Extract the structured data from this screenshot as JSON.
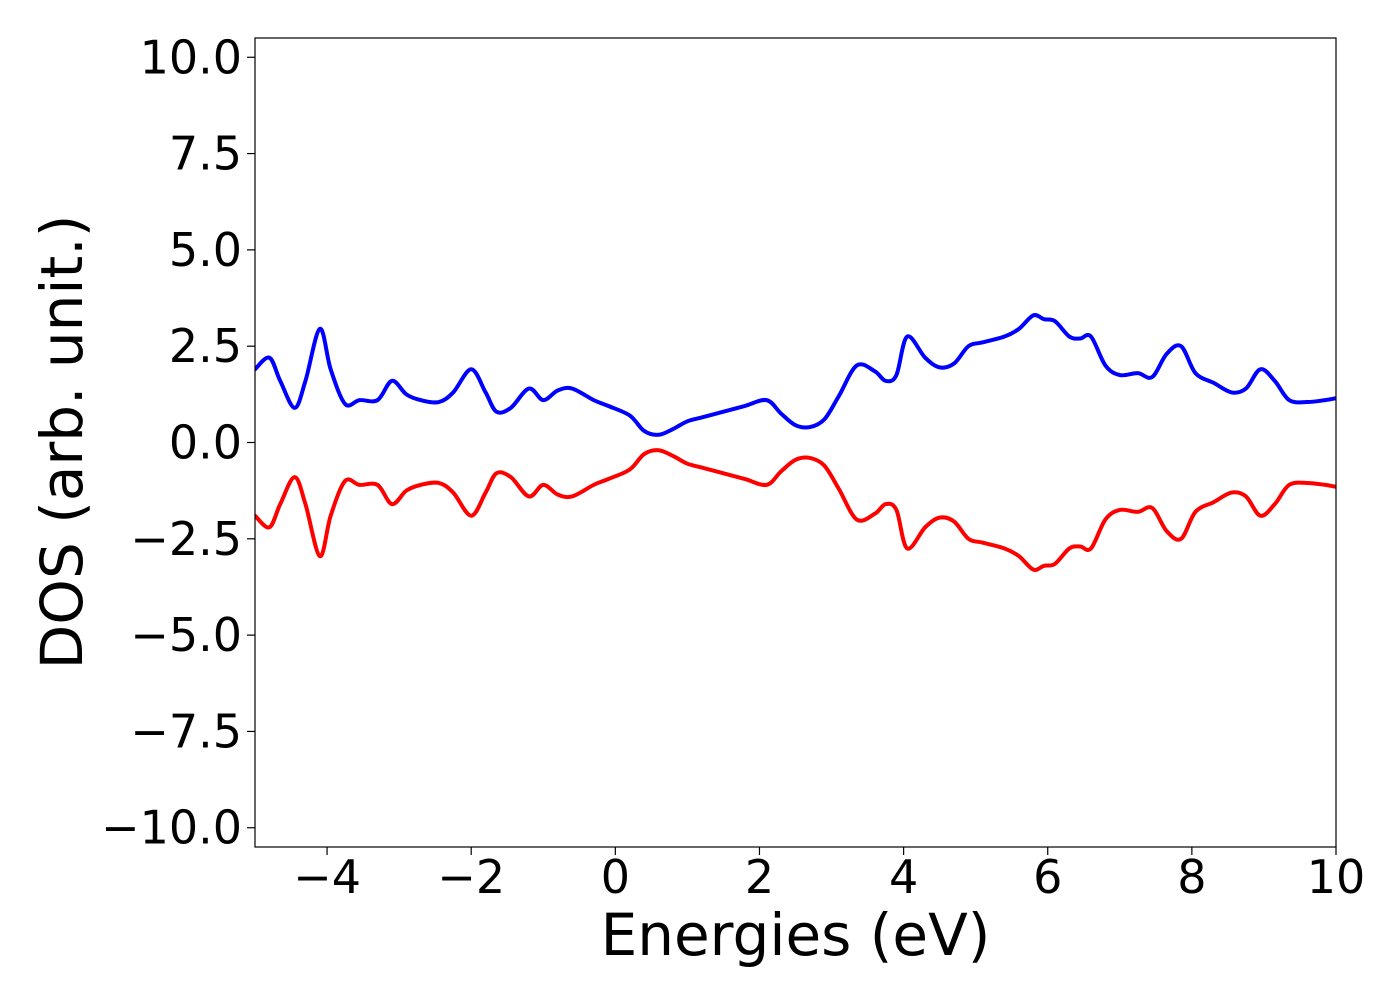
{
  "chart_data": {
    "type": "line",
    "xlabel": "Energies (eV)",
    "ylabel": "DOS (arb. unit.)",
    "xlim": [
      -5,
      10
    ],
    "ylim": [
      -10.5,
      10.5
    ],
    "x_ticks": [
      -4,
      -2,
      0,
      2,
      4,
      6,
      8,
      10
    ],
    "x_tick_labels": [
      "−4",
      "−2",
      "0",
      "2",
      "4",
      "6",
      "8",
      "10"
    ],
    "y_ticks": [
      10,
      7.5,
      5,
      2.5,
      0,
      -2.5,
      -5,
      -7.5,
      -10
    ],
    "y_tick_labels": [
      "10.0",
      "7.5",
      "5.0",
      "2.5",
      "0.0",
      "−2.5",
      "−5.0",
      "−7.5",
      "−10.0"
    ],
    "grid": false,
    "series": [
      {
        "color": "#0000ff",
        "x": [
          -5.0,
          -4.8,
          -4.65,
          -4.45,
          -4.3,
          -4.1,
          -3.95,
          -3.75,
          -3.55,
          -3.3,
          -3.1,
          -2.9,
          -2.7,
          -2.45,
          -2.25,
          -2.0,
          -1.8,
          -1.65,
          -1.45,
          -1.2,
          -1.0,
          -0.8,
          -0.6,
          -0.3,
          -0.1,
          0.2,
          0.4,
          0.6,
          0.8,
          1.0,
          1.2,
          1.5,
          1.8,
          2.1,
          2.3,
          2.5,
          2.7,
          2.9,
          3.1,
          3.35,
          3.6,
          3.75,
          3.9,
          4.05,
          4.3,
          4.5,
          4.7,
          4.9,
          5.1,
          5.4,
          5.6,
          5.8,
          5.95,
          6.1,
          6.3,
          6.45,
          6.6,
          6.8,
          7.0,
          7.25,
          7.45,
          7.65,
          7.85,
          8.05,
          8.3,
          8.55,
          8.75,
          8.95,
          9.15,
          9.35,
          9.6,
          9.85,
          10.0
        ],
        "y": [
          1.9,
          2.2,
          1.6,
          0.9,
          1.6,
          2.95,
          1.9,
          1.0,
          1.1,
          1.1,
          1.6,
          1.25,
          1.1,
          1.05,
          1.3,
          1.9,
          1.3,
          0.8,
          0.9,
          1.4,
          1.1,
          1.35,
          1.4,
          1.1,
          0.95,
          0.7,
          0.3,
          0.2,
          0.35,
          0.55,
          0.65,
          0.8,
          0.95,
          1.1,
          0.75,
          0.45,
          0.4,
          0.6,
          1.2,
          2.0,
          1.85,
          1.6,
          1.75,
          2.75,
          2.2,
          1.95,
          2.05,
          2.5,
          2.6,
          2.75,
          2.95,
          3.3,
          3.2,
          3.15,
          2.75,
          2.7,
          2.75,
          2.0,
          1.75,
          1.8,
          1.7,
          2.3,
          2.5,
          1.8,
          1.55,
          1.3,
          1.4,
          1.9,
          1.6,
          1.1,
          1.05,
          1.1,
          1.15
        ]
      },
      {
        "color": "#ff0000",
        "x": [
          -5.0,
          -4.8,
          -4.65,
          -4.45,
          -4.3,
          -4.1,
          -3.95,
          -3.75,
          -3.55,
          -3.3,
          -3.1,
          -2.9,
          -2.7,
          -2.45,
          -2.25,
          -2.0,
          -1.8,
          -1.65,
          -1.45,
          -1.2,
          -1.0,
          -0.8,
          -0.6,
          -0.3,
          -0.1,
          0.2,
          0.4,
          0.6,
          0.8,
          1.0,
          1.2,
          1.5,
          1.8,
          2.1,
          2.3,
          2.5,
          2.7,
          2.9,
          3.1,
          3.35,
          3.6,
          3.75,
          3.9,
          4.05,
          4.3,
          4.5,
          4.7,
          4.9,
          5.1,
          5.4,
          5.6,
          5.8,
          5.95,
          6.1,
          6.3,
          6.45,
          6.6,
          6.8,
          7.0,
          7.25,
          7.45,
          7.65,
          7.85,
          8.05,
          8.3,
          8.55,
          8.75,
          8.95,
          9.15,
          9.35,
          9.6,
          9.85,
          10.0
        ],
        "y": [
          -1.9,
          -2.2,
          -1.6,
          -0.9,
          -1.6,
          -2.95,
          -1.9,
          -1.0,
          -1.1,
          -1.1,
          -1.6,
          -1.25,
          -1.1,
          -1.05,
          -1.3,
          -1.9,
          -1.3,
          -0.8,
          -0.9,
          -1.4,
          -1.1,
          -1.35,
          -1.4,
          -1.1,
          -0.95,
          -0.7,
          -0.3,
          -0.2,
          -0.35,
          -0.55,
          -0.65,
          -0.8,
          -0.95,
          -1.1,
          -0.75,
          -0.45,
          -0.4,
          -0.6,
          -1.2,
          -2.0,
          -1.85,
          -1.6,
          -1.75,
          -2.75,
          -2.2,
          -1.95,
          -2.05,
          -2.5,
          -2.6,
          -2.75,
          -2.95,
          -3.3,
          -3.2,
          -3.15,
          -2.75,
          -2.7,
          -2.75,
          -2.0,
          -1.75,
          -1.8,
          -1.7,
          -2.3,
          -2.5,
          -1.8,
          -1.55,
          -1.3,
          -1.4,
          -1.9,
          -1.6,
          -1.1,
          -1.05,
          -1.1,
          -1.15
        ]
      }
    ]
  }
}
